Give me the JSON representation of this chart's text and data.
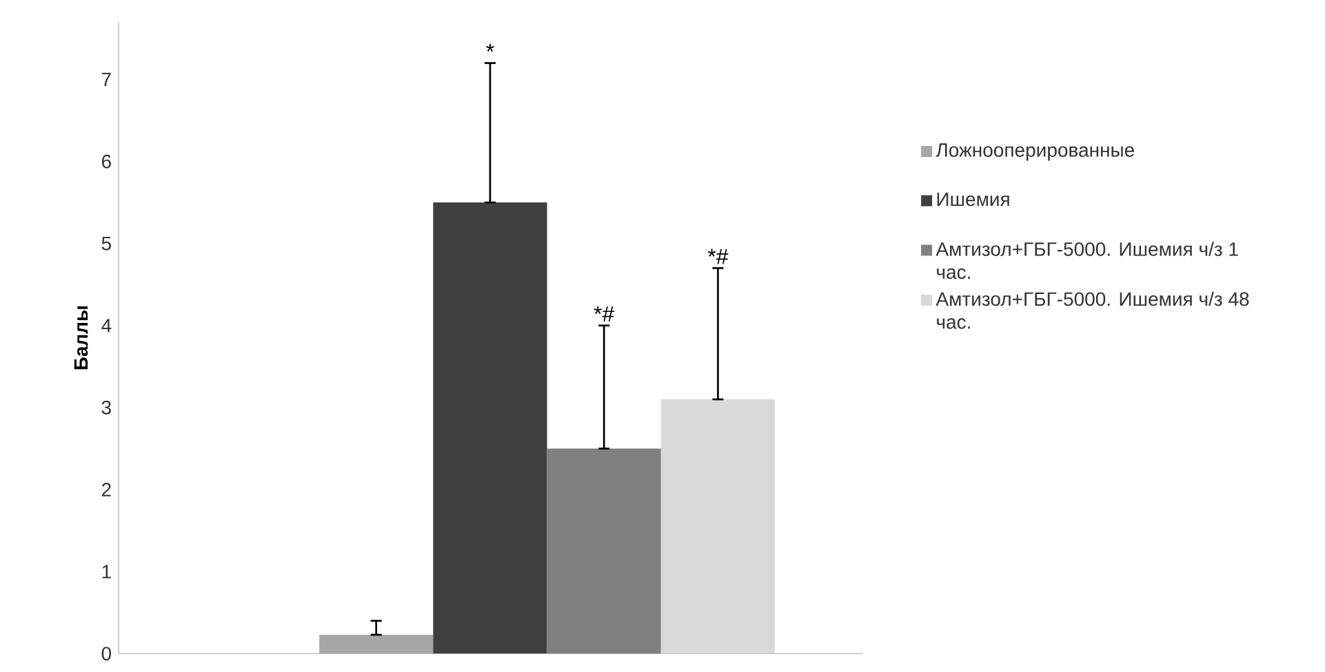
{
  "chart_data": {
    "type": "bar",
    "ylabel": "Баллы",
    "categories": [
      null
    ],
    "ylim": [
      0,
      7.7
    ],
    "yticks": [
      0,
      1,
      2,
      3,
      4,
      5,
      6,
      7
    ],
    "legend": "right",
    "grid": false,
    "series": [
      {
        "name": "Ложнооперированные",
        "color": "#a6a6a6",
        "values": [
          0.23
        ],
        "errors": [
          [
            0.23,
            0.4
          ]
        ]
      },
      {
        "name": "Ишемия",
        "color": "#404040",
        "values": [
          5.5
        ],
        "errors": [
          [
            5.5,
            7.2
          ]
        ]
      },
      {
        "name": "Амтизол+ГБГ-5000. Ишемия ч/з 1 час.",
        "color": "#808080",
        "values": [
          2.5
        ],
        "errors": [
          [
            2.5,
            4.0
          ]
        ]
      },
      {
        "name": "Амтизол+ГБГ-5000. Ишемия ч/з 48 час.",
        "color": "#d9d9d9",
        "values": [
          3.1
        ],
        "errors": [
          [
            3.1,
            4.7
          ]
        ]
      }
    ],
    "annotations": [
      {
        "text": "*",
        "y": 7.2
      },
      {
        "text": "*#",
        "y": 4.0
      },
      {
        "text": "*#",
        "y": 4.7
      }
    ]
  }
}
